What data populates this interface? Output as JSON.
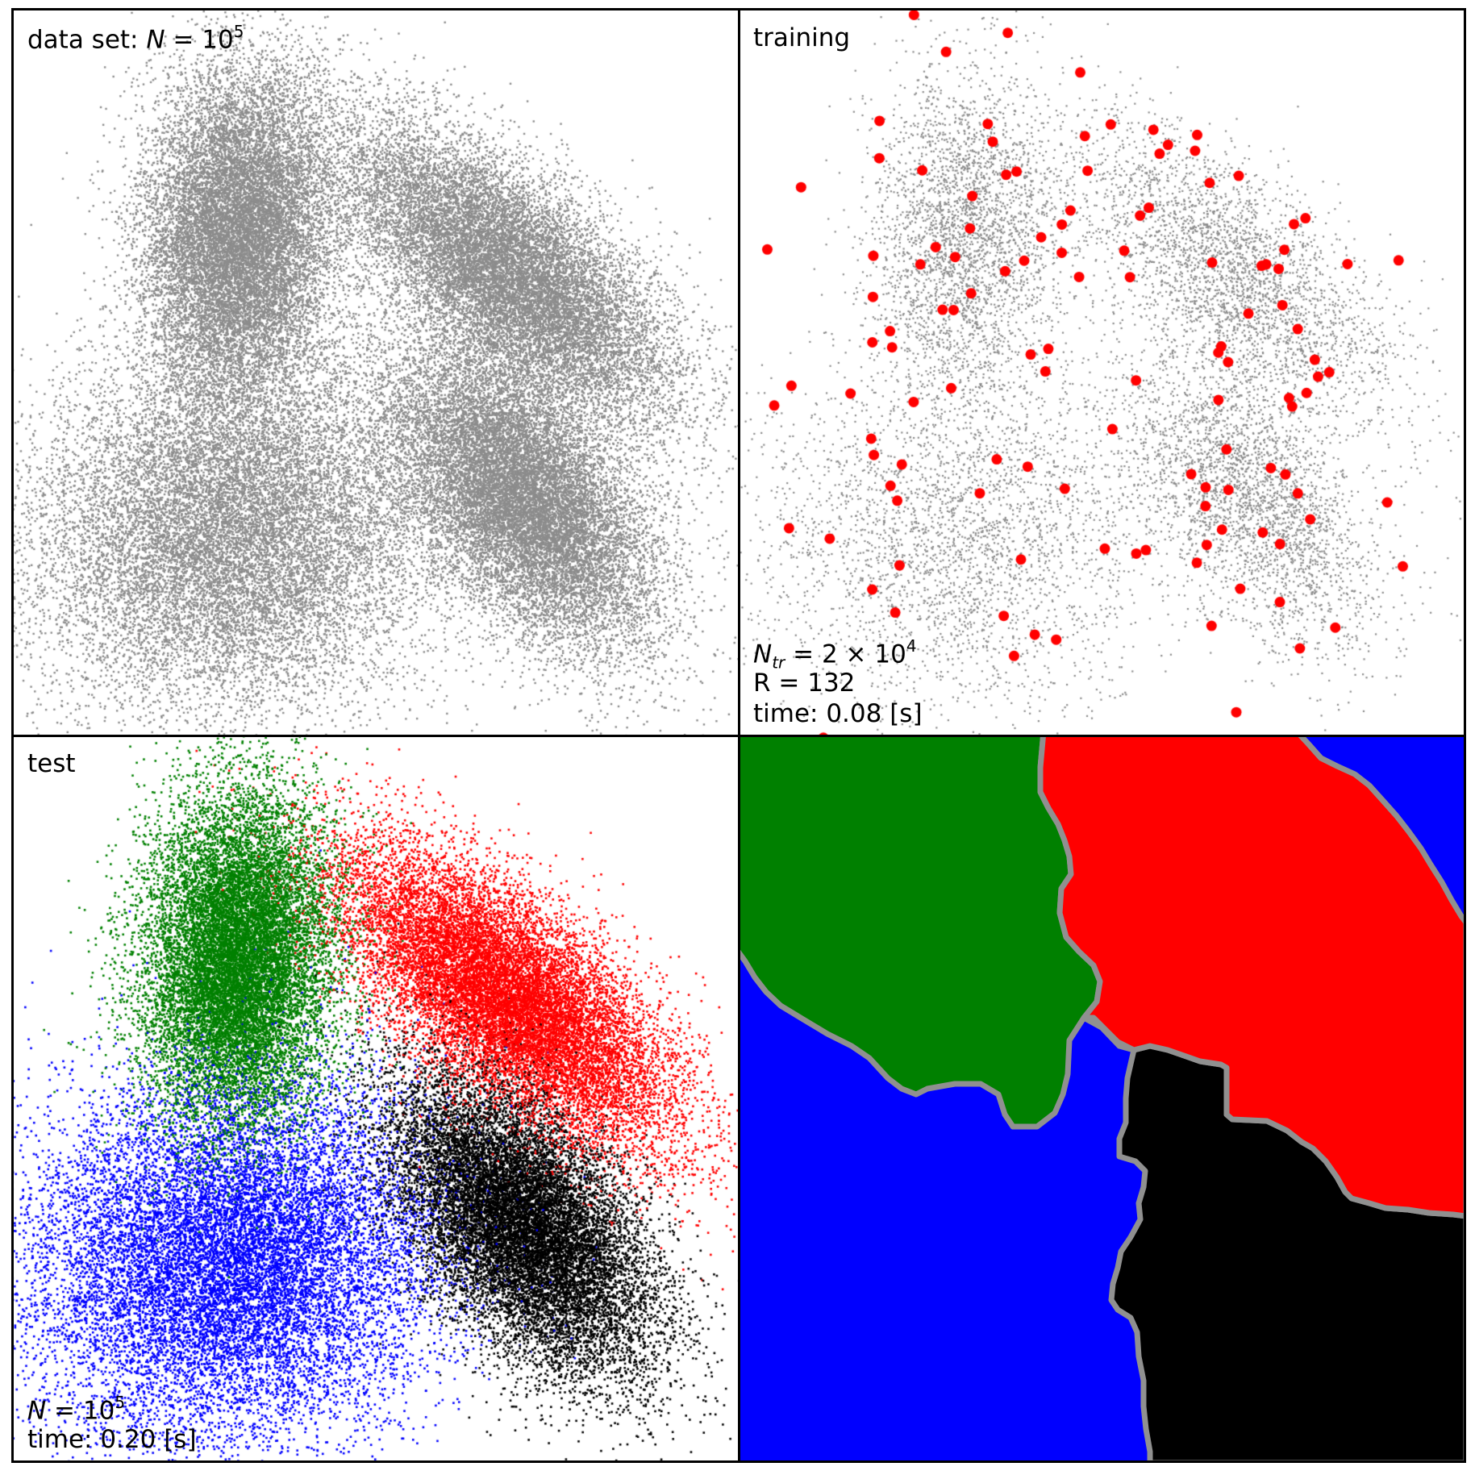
{
  "chart_data": [
    {
      "panel": "data-set",
      "type": "scatter",
      "title": "data set: N = 10^5",
      "title_parts": {
        "prefix": "data set: ",
        "symbol": "N",
        "eq": " = 10",
        "exp": "5"
      },
      "n_points": 100000,
      "point_color": "#8c8c8c",
      "xlim": [
        0,
        1
      ],
      "ylim": [
        0,
        1
      ],
      "clusters": [
        {
          "name": "top-left",
          "mean": [
            0.31,
            0.69
          ],
          "sd_major": 0.115,
          "sd_minor": 0.065,
          "angle_deg": 87
        },
        {
          "name": "top-right",
          "mean": [
            0.68,
            0.64
          ],
          "sd_major": 0.14,
          "sd_minor": 0.06,
          "angle_deg": -40
        },
        {
          "name": "bottom-left",
          "mean": [
            0.3,
            0.28
          ],
          "sd_major": 0.14,
          "sd_minor": 0.12,
          "angle_deg": 10
        },
        {
          "name": "bottom-right",
          "mean": [
            0.7,
            0.33
          ],
          "sd_major": 0.12,
          "sd_minor": 0.065,
          "angle_deg": -52
        }
      ]
    },
    {
      "panel": "training",
      "type": "scatter",
      "title": "training",
      "n_training_points": 20000,
      "n_representatives": 132,
      "point_color": "#8c8c8c",
      "representative_color": "#ff0000",
      "annotation": {
        "ntr_symbol": "N",
        "ntr_sub": "tr",
        "ntr_eq": " = 2 × 10",
        "ntr_exp": "4",
        "r_line": "R = 132",
        "time_line": "time: 0.08 [s]"
      }
    },
    {
      "panel": "test",
      "type": "scatter",
      "title": "test",
      "n_points": 100000,
      "class_colors": {
        "top-left": "#008000",
        "top-right": "#ff0000",
        "bottom-left": "#0000ff",
        "bottom-right": "#000000"
      },
      "annotation": {
        "n_symbol": "N",
        "n_eq": " = 10",
        "n_exp": "5",
        "time_line": "time: 0.20 [s]"
      }
    },
    {
      "panel": "decision-regions",
      "type": "heatmap",
      "region_colors": {
        "green": "#008000",
        "red": "#ff0000",
        "blue": "#0000ff",
        "black": "#000000"
      },
      "boundary_color": "#909090"
    }
  ]
}
